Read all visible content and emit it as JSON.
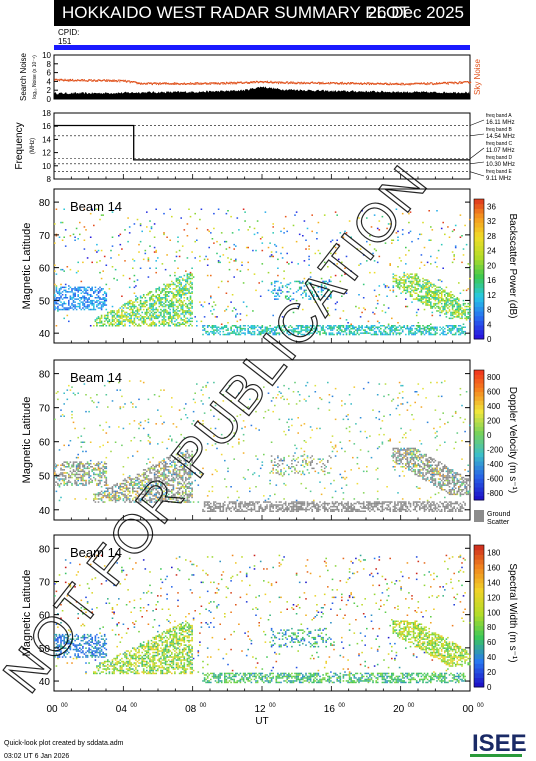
{
  "header": {
    "title": "HOKKAIDO WEST RADAR SUMMARY PLOT",
    "date": "26 Dec 2025",
    "cpid_label": "CPID:",
    "cpid_value": "151"
  },
  "watermark": "NOT FOR PUBLICATION",
  "footer": {
    "line1": "Quick-look plot created by sddata.adm",
    "line2": "03:02 UT  6 Jan 2026"
  },
  "logo": "ISEE",
  "chart_data": [
    {
      "type": "area",
      "panel": "noise",
      "ylabel": "Search Noise",
      "ylabel2": "log₁₀ Noise (x 10⁻⁴)",
      "right_label": "Sky Noise",
      "ylim": [
        0,
        10
      ],
      "yticks": [
        0,
        2,
        4,
        6,
        8,
        10
      ],
      "x": [
        0,
        2,
        4,
        5,
        8,
        10,
        11,
        12,
        13,
        16,
        18,
        20,
        22,
        24
      ],
      "search_noise": [
        1.3,
        1.3,
        1.4,
        1.5,
        1.6,
        1.8,
        2.0,
        2.8,
        2.2,
        1.8,
        1.7,
        1.6,
        1.5,
        1.5
      ],
      "sky_noise": [
        4.3,
        4.2,
        4.1,
        3.5,
        3.5,
        3.6,
        3.7,
        3.9,
        3.7,
        3.6,
        3.5,
        3.4,
        3.5,
        3.8
      ]
    },
    {
      "type": "line",
      "panel": "frequency",
      "ylabel": "Frequency",
      "unit": "(MHz)",
      "ylim": [
        8,
        18
      ],
      "yticks": [
        8,
        10,
        12,
        14,
        16,
        18
      ],
      "x": [
        0,
        4.6,
        4.6,
        24
      ],
      "values": [
        16.1,
        16.1,
        10.9,
        10.9
      ],
      "bands": [
        {
          "name": "freq band A",
          "freq": "16.11 MHz",
          "value": 16.11
        },
        {
          "name": "freq band B",
          "freq": "14.54 MHz",
          "value": 14.54
        },
        {
          "name": "freq band C",
          "freq": "11.07 MHz",
          "value": 11.07
        },
        {
          "name": "freq band D",
          "freq": "10.30 MHz",
          "value": 10.3
        },
        {
          "name": "freq band E",
          "freq": "9.11 MHz",
          "value": 9.11
        }
      ]
    },
    {
      "type": "heatmap",
      "panel": "power",
      "beam": "Beam 14",
      "ylabel": "Magnetic Latitude",
      "ylim": [
        37,
        84
      ],
      "yticks": [
        40,
        50,
        60,
        70,
        80
      ],
      "colorbar_label": "Backscatter Power (dB)",
      "colorbar_ticks": [
        0,
        4,
        8,
        12,
        16,
        20,
        24,
        28,
        32,
        36
      ],
      "colorbar_range": [
        0,
        38
      ]
    },
    {
      "type": "heatmap",
      "panel": "velocity",
      "beam": "Beam 14",
      "ylabel": "Magnetic Latitude",
      "ylim": [
        37,
        84
      ],
      "yticks": [
        40,
        50,
        60,
        70,
        80
      ],
      "colorbar_label": "Doppler Velocity (m s⁻¹)",
      "colorbar_ticks": [
        800,
        600,
        400,
        200,
        0,
        -200,
        -400,
        -600,
        -800
      ],
      "colorbar_range": [
        -900,
        900
      ],
      "ground_scatter_label": "Ground Scatter"
    },
    {
      "type": "heatmap",
      "panel": "width",
      "beam": "Beam 14",
      "ylabel": "Magnetic Latitude",
      "ylim": [
        37,
        84
      ],
      "yticks": [
        40,
        50,
        60,
        70,
        80
      ],
      "colorbar_label": "Spectral Width (m s⁻¹)",
      "colorbar_ticks": [
        0,
        20,
        40,
        60,
        80,
        100,
        120,
        140,
        160,
        180
      ],
      "colorbar_range": [
        0,
        190
      ]
    }
  ],
  "xaxis": {
    "label": "UT",
    "ticks": [
      "00",
      "04",
      "08",
      "12",
      "16",
      "20",
      "00"
    ],
    "tick_sup": "00",
    "range": [
      0,
      24
    ]
  }
}
